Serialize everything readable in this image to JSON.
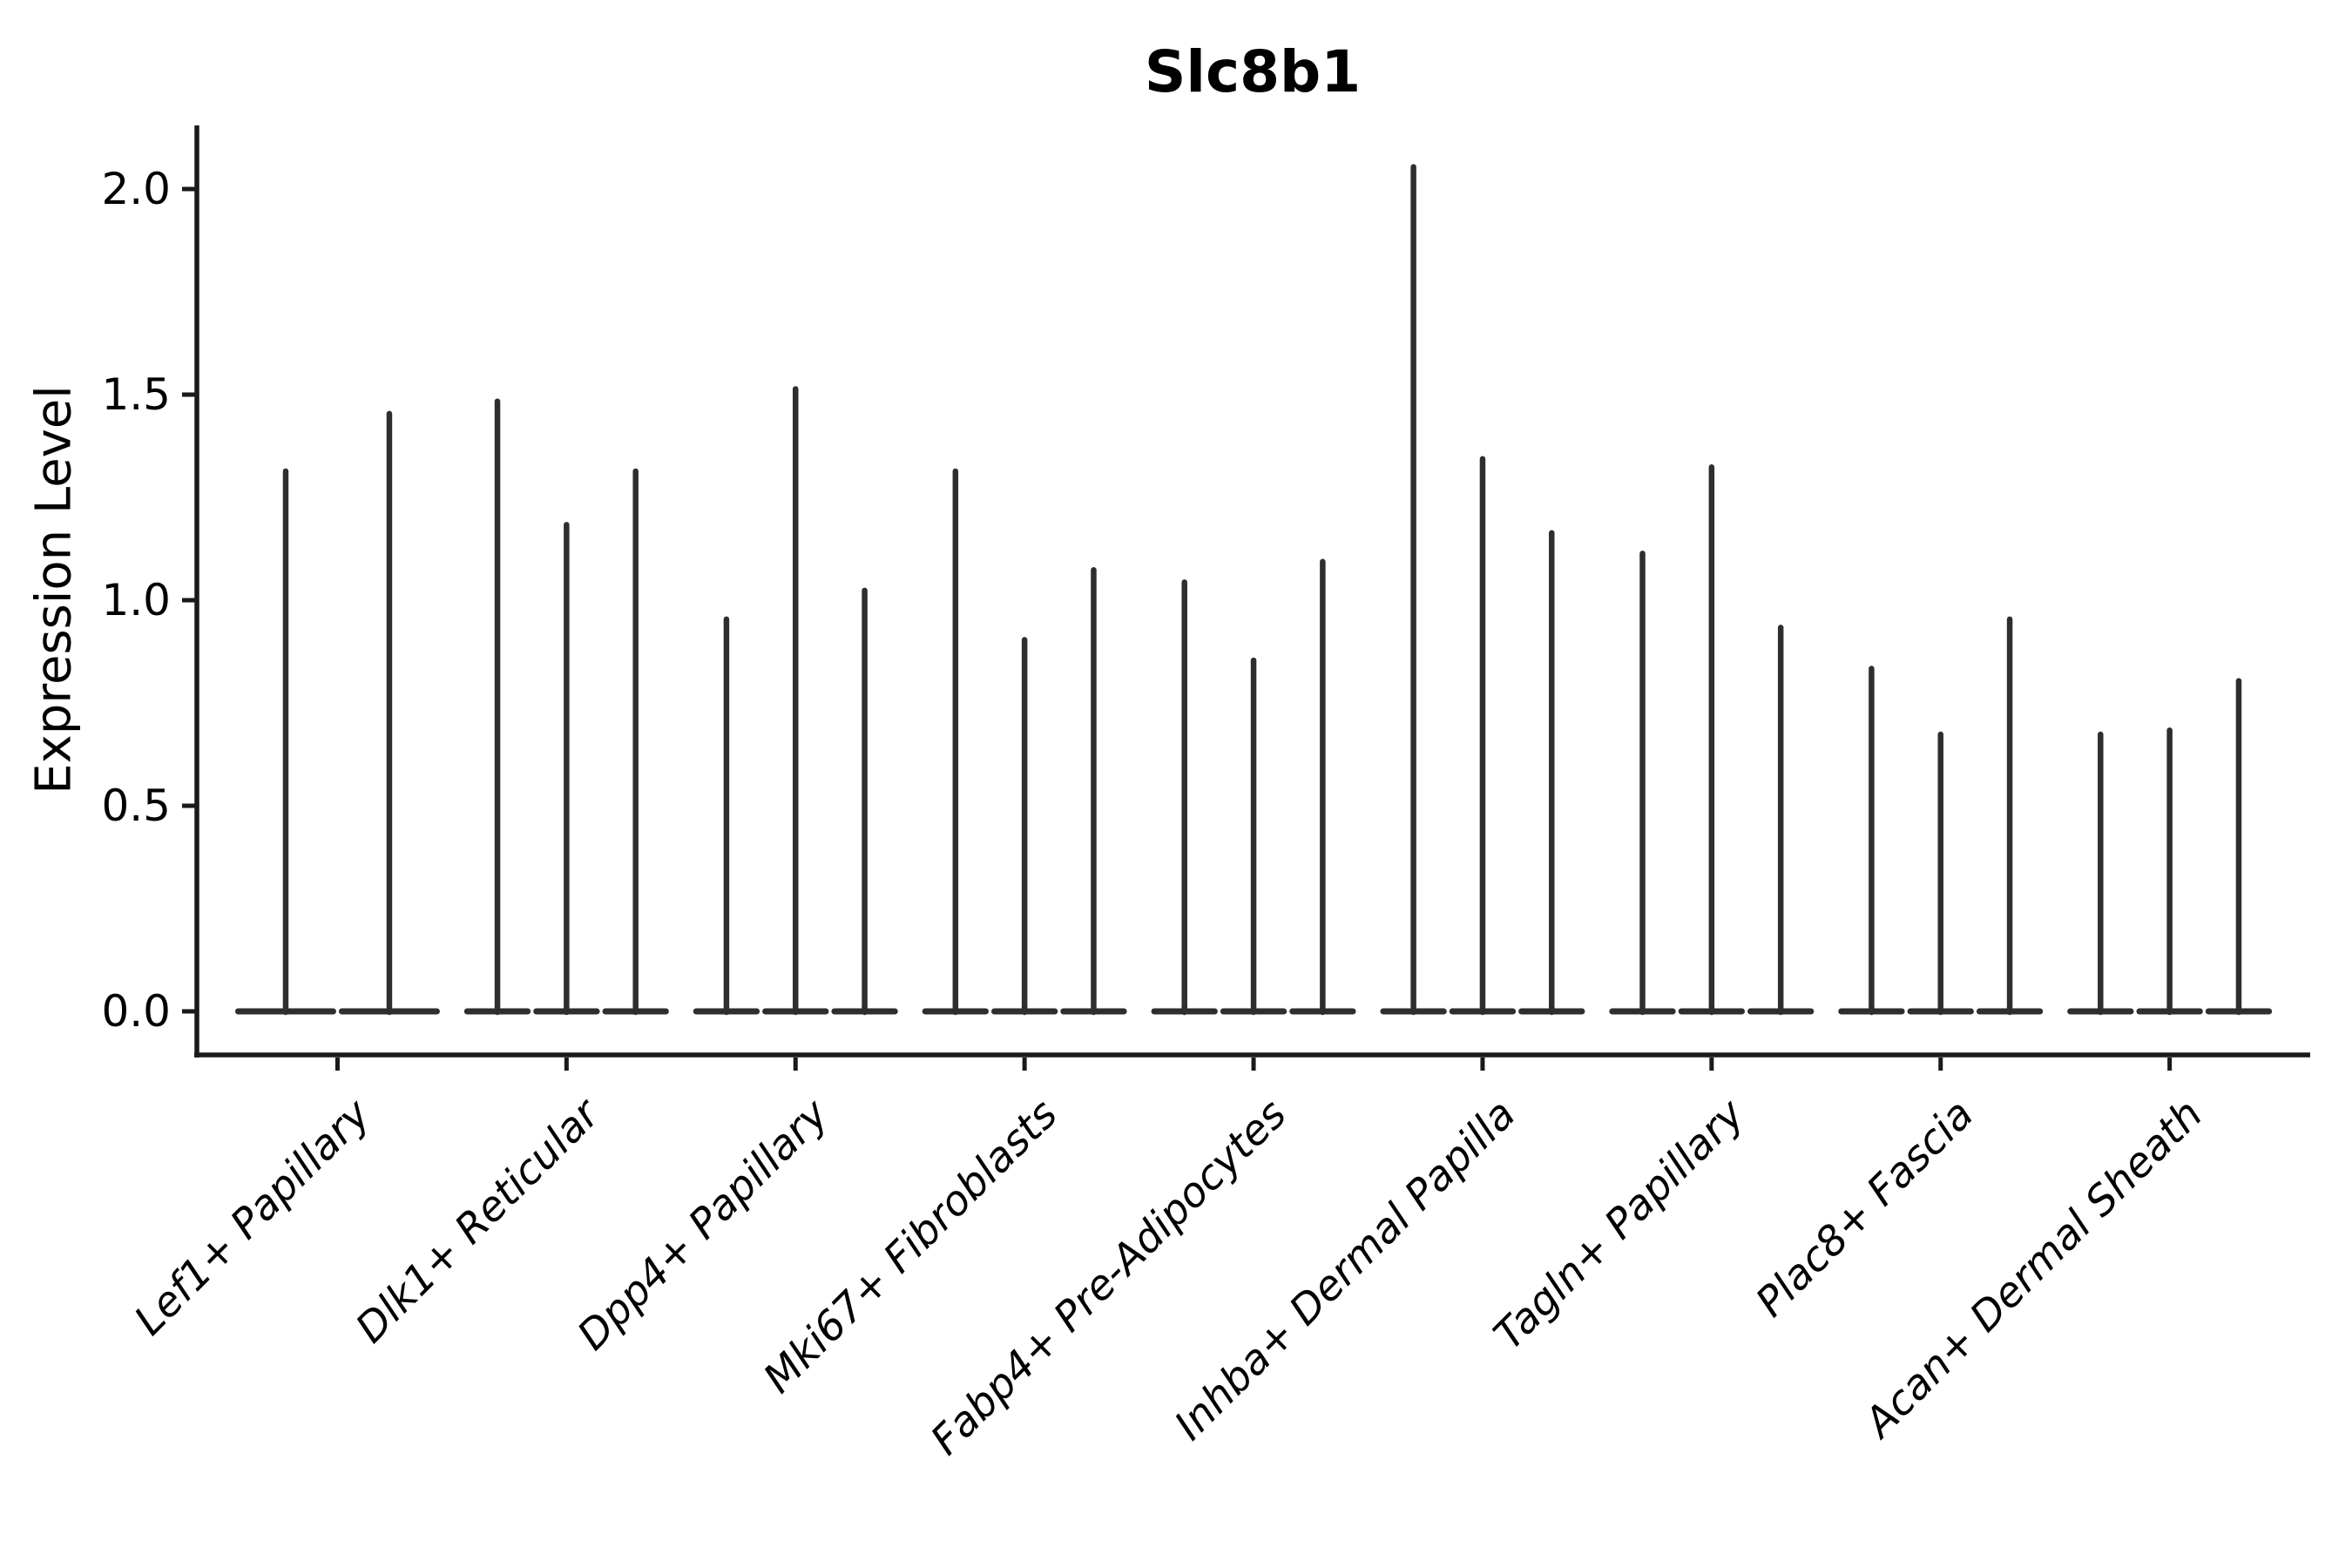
{
  "title": "Slc8b1",
  "y_axis": {
    "label": "Expression Level",
    "tick_labels": [
      "0.0",
      "0.5",
      "1.0",
      "1.5",
      "2.0"
    ],
    "tick_values": [
      0.0,
      0.5,
      1.0,
      1.5,
      2.0
    ]
  },
  "colors": {
    "violin": "#2e2e2e",
    "axis": "#1a1a1a",
    "text": "#000000",
    "background": "#ffffff"
  },
  "chart_data": {
    "type": "violin",
    "title": "Slc8b1",
    "xlabel": "",
    "ylabel": "Expression Level",
    "ylim": [
      -0.11,
      2.16
    ],
    "yticks": [
      0.0,
      0.5,
      1.0,
      1.5,
      2.0
    ],
    "grid": false,
    "legend": "none",
    "description": "Spike-shaped violins: wide flat base at expression 0 with a thin vertical spike up to the maximum expression value; 2-3 violins per cell-type category",
    "categories": [
      {
        "label": "Lef1+ Papillary",
        "violin_max_values": [
          1.32,
          1.46
        ]
      },
      {
        "label": "Dlk1+ Reticular",
        "violin_max_values": [
          1.49,
          1.19,
          1.32
        ]
      },
      {
        "label": "Dpp4+ Papillary",
        "violin_max_values": [
          0.96,
          1.52,
          1.03
        ]
      },
      {
        "label": "Mki67+ Fibroblasts",
        "violin_max_values": [
          1.32,
          0.91,
          1.08
        ]
      },
      {
        "label": "Fabp4+ Pre-Adipocytes",
        "violin_max_values": [
          1.05,
          0.86,
          1.1
        ]
      },
      {
        "label": "Inhba+ Dermal Papilla",
        "violin_max_values": [
          2.06,
          1.35,
          1.17
        ]
      },
      {
        "label": "Tagln+ Papillary",
        "violin_max_values": [
          1.12,
          1.33,
          0.94
        ]
      },
      {
        "label": "Plac8+ Fascia",
        "violin_max_values": [
          0.84,
          0.68,
          0.96
        ]
      },
      {
        "label": "Acan+ Dermal Sheath",
        "violin_max_values": [
          0.68,
          0.69,
          0.81
        ]
      }
    ]
  }
}
